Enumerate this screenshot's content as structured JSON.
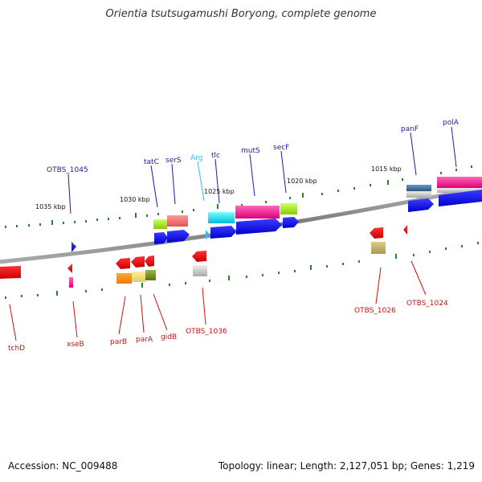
{
  "title": "Orientia tsutsugamushi Boryong, complete genome",
  "footer": {
    "accession": "Accession: NC_009488",
    "summary": "Topology: linear; Length: 2,127,051 bp; Genes: 1,219"
  },
  "kbp_ticks": [
    "1035 kbp",
    "1030 kbp",
    "1025 kbp",
    "1020 kbp",
    "1015 kbp"
  ],
  "forward_labels": [
    "OTBS_1045",
    "tatC",
    "serS",
    "Arg",
    "tlc",
    "mutS",
    "secF",
    "panF",
    "polA"
  ],
  "reverse_labels": [
    "tchD",
    "xseB",
    "parB",
    "parA",
    "gidB",
    "OTBS_1036",
    "OTBS_1026",
    "OTBS_1024"
  ],
  "colors": {
    "forward_label": "#1a1aa8",
    "reverse_label": "#cc1111",
    "trna_label": "#33bbee",
    "backbone": "#888888",
    "forward_gene": "#1a1aff",
    "reverse_gene": "#ee1111"
  }
}
